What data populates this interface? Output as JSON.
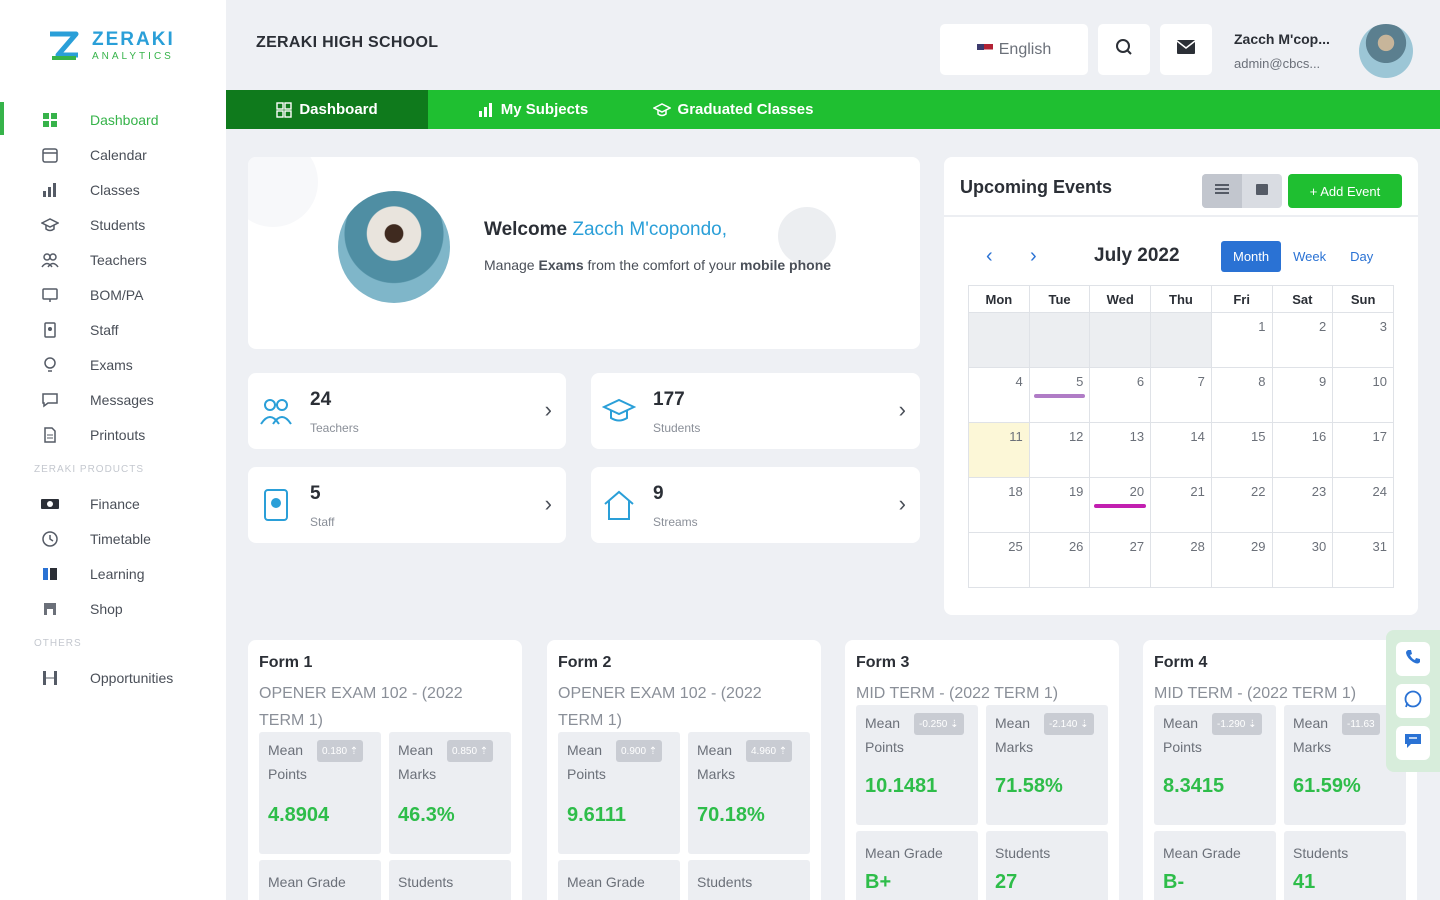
{
  "brand": {
    "name": "ZERAKI",
    "tagline": "ANALYTICS",
    "colors": {
      "green": "#1fbf31",
      "blue": "#2a9fd8"
    }
  },
  "sidebar": {
    "items": [
      {
        "label": "Dashboard",
        "icon": "grid-icon",
        "active": true
      },
      {
        "label": "Calendar",
        "icon": "calendar-icon"
      },
      {
        "label": "Classes",
        "icon": "bar-chart-icon"
      },
      {
        "label": "Students",
        "icon": "graduation-cap-icon"
      },
      {
        "label": "Teachers",
        "icon": "users-icon"
      },
      {
        "label": "BOM/PA",
        "icon": "presentation-icon"
      },
      {
        "label": "Staff",
        "icon": "id-badge-icon"
      },
      {
        "label": "Exams",
        "icon": "lightbulb-icon"
      },
      {
        "label": "Messages",
        "icon": "chat-icon"
      },
      {
        "label": "Printouts",
        "icon": "document-icon"
      }
    ],
    "products_heading": "ZERAKI PRODUCTS",
    "products": [
      {
        "label": "Finance",
        "icon": "money-icon"
      },
      {
        "label": "Timetable",
        "icon": "clock-icon"
      },
      {
        "label": "Learning",
        "icon": "book-icon"
      },
      {
        "label": "Shop",
        "icon": "shop-icon"
      }
    ],
    "others_heading": "OTHERS",
    "others": [
      {
        "label": "Opportunities",
        "icon": "columns-icon"
      }
    ]
  },
  "header": {
    "school_name": "ZERAKI HIGH SCHOOL",
    "language": "English",
    "user_name": "Zacch M'cop...",
    "user_email": "admin@cbcs..."
  },
  "tabs": [
    {
      "label": "Dashboard",
      "icon": "grid-icon"
    },
    {
      "label": "My Subjects",
      "icon": "bar-chart-icon"
    },
    {
      "label": "Graduated Classes",
      "icon": "graduation-cap-icon"
    }
  ],
  "welcome": {
    "greeting": "Welcome",
    "name": "Zacch M'copondo,",
    "sub_prefix": "Manage",
    "sub_bold1": "Exams",
    "sub_mid": "from the comfort of your",
    "sub_bold2": "mobile phone"
  },
  "stats": [
    {
      "value": "24",
      "label": "Teachers",
      "icon": "users-icon"
    },
    {
      "value": "177",
      "label": "Students",
      "icon": "graduation-cap-icon"
    },
    {
      "value": "5",
      "label": "Staff",
      "icon": "id-badge-icon"
    },
    {
      "value": "9",
      "label": "Streams",
      "icon": "house-icon"
    }
  ],
  "events": {
    "title": "Upcoming Events",
    "add_label": "+ Add Event",
    "month_title": "July 2022",
    "views": [
      "Month",
      "Week",
      "Day"
    ],
    "weekdays": [
      "Mon",
      "Tue",
      "Wed",
      "Thu",
      "Fri",
      "Sat",
      "Sun"
    ],
    "weeks": [
      [
        "",
        "",
        "",
        "",
        "1",
        "2",
        "3"
      ],
      [
        "4",
        "5",
        "6",
        "7",
        "8",
        "9",
        "10"
      ],
      [
        "11",
        "12",
        "13",
        "14",
        "15",
        "16",
        "17"
      ],
      [
        "18",
        "19",
        "20",
        "21",
        "22",
        "23",
        "24"
      ],
      [
        "25",
        "26",
        "27",
        "28",
        "29",
        "30",
        "31"
      ]
    ],
    "today": "11",
    "event_days": [
      {
        "day": "5",
        "color": "#b07cc6"
      },
      {
        "day": "20",
        "color": "#c21fb0"
      }
    ]
  },
  "forms": [
    {
      "title": "Form 1",
      "exam": "OPENER EXAM 102 - (2022 TERM 1)",
      "points_label": [
        "Mean",
        "Points"
      ],
      "points_change": "0.180 ⇡",
      "points_value": "4.8904",
      "marks_label": [
        "Mean",
        "Marks"
      ],
      "marks_change": "0.850 ⇡",
      "marks_value": "46.3%",
      "grade_label": "Mean Grade",
      "students_label": "Students"
    },
    {
      "title": "Form 2",
      "exam": "OPENER EXAM 102 - (2022 TERM 1)",
      "points_label": [
        "Mean",
        "Points"
      ],
      "points_change": "0.900 ⇡",
      "points_value": "9.6111",
      "marks_label": [
        "Mean",
        "Marks"
      ],
      "marks_change": "4.960 ⇡",
      "marks_value": "70.18%",
      "grade_label": "Mean Grade",
      "students_label": "Students"
    },
    {
      "title": "Form 3",
      "exam": "MID TERM - (2022 TERM 1)",
      "points_label": [
        "Mean",
        "Points"
      ],
      "points_change": "-0.250 ⇣",
      "points_value": "10.1481",
      "marks_label": [
        "Mean",
        "Marks"
      ],
      "marks_change": "-2.140 ⇣",
      "marks_value": "71.58%",
      "grade_label": "Mean Grade",
      "grade_value": "B+",
      "students_label": "Students",
      "students_value": "27"
    },
    {
      "title": "Form 4",
      "exam": "MID TERM - (2022 TERM 1)",
      "points_label": [
        "Mean",
        "Points"
      ],
      "points_change": "-1.290 ⇣",
      "points_value": "8.3415",
      "marks_label": [
        "Mean",
        "Marks"
      ],
      "marks_change": "-11.63",
      "marks_value": "61.59%",
      "grade_label": "Mean Grade",
      "grade_value": "B-",
      "students_label": "Students",
      "students_value": "41"
    }
  ],
  "contact": [
    {
      "icon": "phone-icon"
    },
    {
      "icon": "whatsapp-icon"
    },
    {
      "icon": "chat-icon"
    }
  ]
}
